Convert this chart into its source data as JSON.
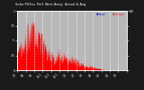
{
  "title": "Solar PV/Inv. Perf. West Array  Actual & Avg",
  "bg_color": "#1a1a1a",
  "plot_bg_color": "#b8b8b8",
  "fill_color": "#ff0000",
  "line_color": "#ff0000",
  "avg_line_color": "#cc0000",
  "legend_actual_color": "#0000ff",
  "legend_avg_color": "#ff2222",
  "legend_actual_label": "Actual",
  "legend_avg_label": "Average",
  "grid_color": "#ffffff",
  "text_color": "#ffffff",
  "ylim": [
    0,
    1.0
  ],
  "num_days": 365,
  "seed": 42
}
